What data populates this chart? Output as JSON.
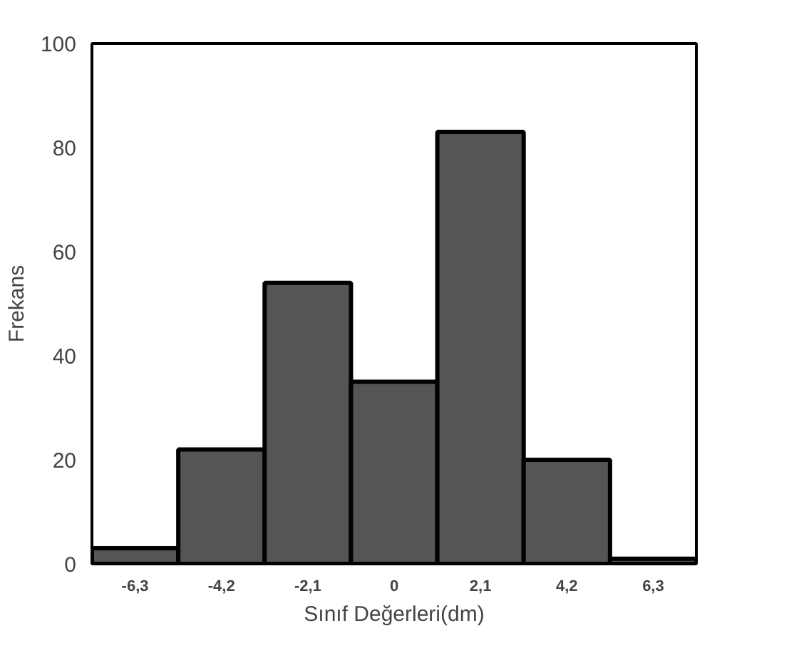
{
  "chart_data": {
    "type": "bar",
    "xlabel": "Sınıf Değerleri(dm)",
    "ylabel": "Frekans",
    "categories": [
      "-6,3",
      "-4,2",
      "-2,1",
      "0",
      "2,1",
      "4,2",
      "6,3"
    ],
    "values": [
      3,
      22,
      54,
      35,
      83,
      20,
      1
    ],
    "color": "#555555",
    "ylim": [
      0,
      100
    ],
    "yticks": [
      0,
      20,
      40,
      60,
      80,
      100
    ],
    "grid": false
  }
}
